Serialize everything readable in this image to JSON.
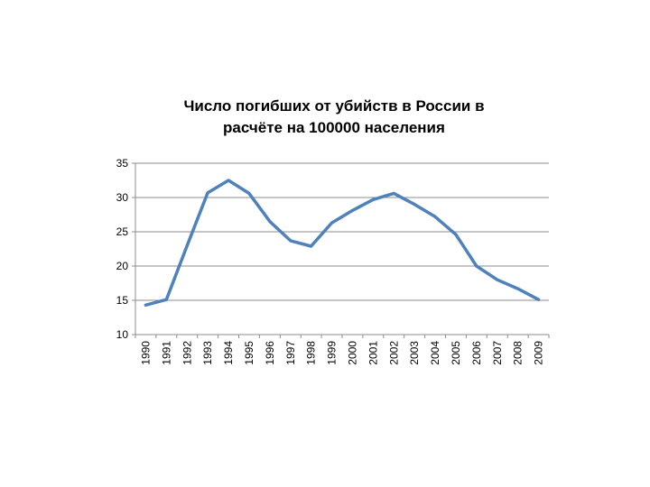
{
  "chart_data": {
    "type": "line",
    "title_lines": [
      "Число погибших от убийств в России в",
      "расчёте на 100000 населения"
    ],
    "x": [
      "1990",
      "1991",
      "1992",
      "1993",
      "1994",
      "1995",
      "1996",
      "1997",
      "1998",
      "1999",
      "2000",
      "2001",
      "2002",
      "2003",
      "2004",
      "2005",
      "2006",
      "2007",
      "2008",
      "2009"
    ],
    "series": [
      {
        "values": [
          14.3,
          15.1,
          23.0,
          30.7,
          32.5,
          30.6,
          26.5,
          23.7,
          22.9,
          26.3,
          28.1,
          29.7,
          30.6,
          29.0,
          27.2,
          24.6,
          20.0,
          18.0,
          16.7,
          15.1
        ]
      }
    ],
    "ylim": [
      10,
      35
    ],
    "yticks": [
      "10",
      "15",
      "20",
      "25",
      "30",
      "35"
    ],
    "grid": true,
    "line_color": "#4f81bd"
  }
}
